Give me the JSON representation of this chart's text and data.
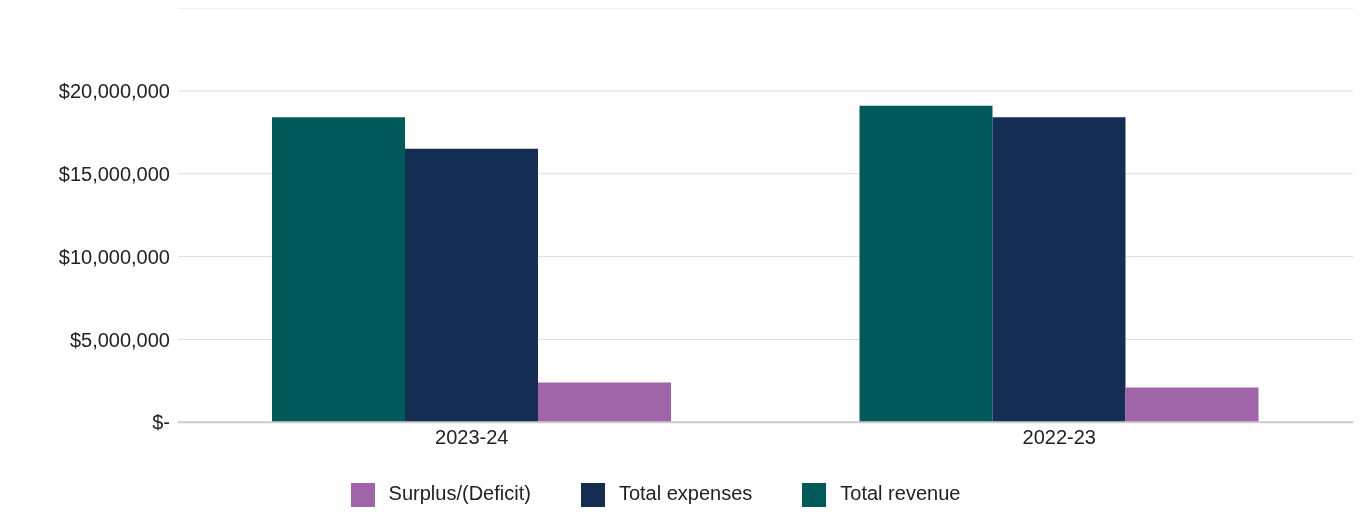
{
  "chart_data": {
    "type": "bar",
    "categories": [
      "2023-24",
      "2022-23"
    ],
    "series": [
      {
        "name": "Total revenue",
        "color": "#005a5a",
        "values": [
          18400000,
          19100000
        ]
      },
      {
        "name": "Total expenses",
        "color": "#142d53",
        "values": [
          16500000,
          18400000
        ]
      },
      {
        "name": "Surplus/(Deficit)",
        "color": "#a064a8",
        "values": [
          2400000,
          2100000
        ]
      }
    ],
    "ylim": [
      0,
      25000000
    ],
    "yticks": [
      {
        "value": 0,
        "label": "$-"
      },
      {
        "value": 5000000,
        "label": "$5,000,000"
      },
      {
        "value": 10000000,
        "label": "$10,000,000"
      },
      {
        "value": 15000000,
        "label": "$15,000,000"
      },
      {
        "value": 20000000,
        "label": "$20,000,000"
      },
      {
        "value": 25000000,
        "label": null
      }
    ],
    "grid": "y",
    "legend": "bottom"
  }
}
